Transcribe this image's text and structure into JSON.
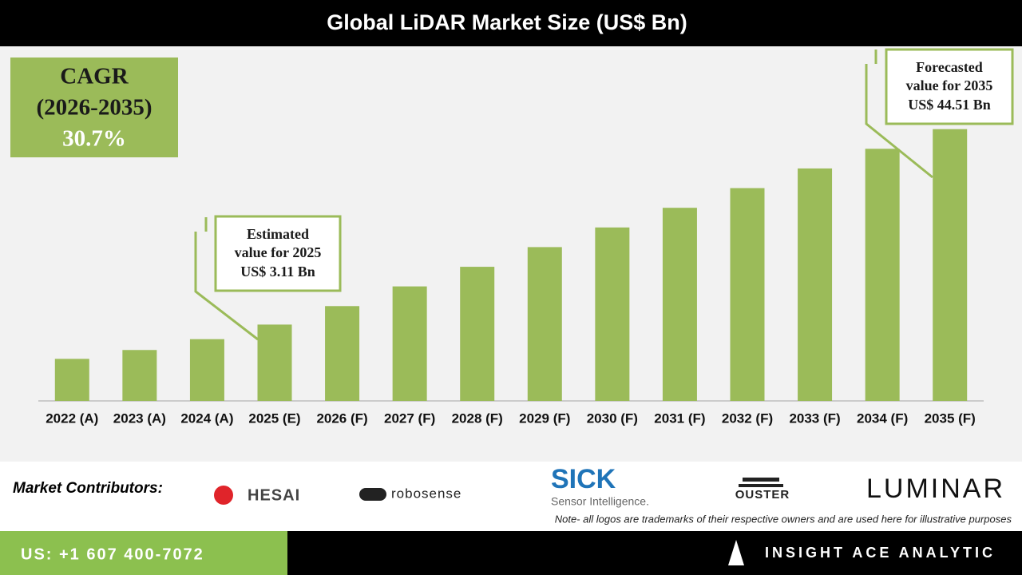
{
  "chart_data": {
    "type": "bar",
    "title": "Global LiDAR Market Size (US$ Bn)",
    "categories": [
      "2022 (A)",
      "2023 (A)",
      "2024 (A)",
      "2025 (E)",
      "2026 (F)",
      "2027 (F)",
      "2028 (F)",
      "2029 (F)",
      "2030 (F)",
      "2031 (F)",
      "2032 (F)",
      "2033 (F)",
      "2034 (F)",
      "2035 (F)"
    ],
    "values": [
      1.95,
      2.2,
      2.55,
      3.11,
      4.0,
      5.23,
      6.83,
      8.93,
      11.67,
      15.25,
      19.94,
      26.06,
      34.06,
      44.51
    ],
    "value_labels": [
      null,
      null,
      null,
      "US$ 3.11 Bn",
      null,
      null,
      null,
      null,
      null,
      null,
      null,
      null,
      null,
      "US$ 44.51 Bn"
    ],
    "annotations": [
      [
        "Estimated",
        "value for 2025"
      ],
      [
        "Forecasted",
        "value for 2035"
      ]
    ],
    "color": "#9bbb59",
    "log_scale": true,
    "ylim": [
      1.1,
      50
    ]
  },
  "cagr": {
    "label": "CAGR",
    "period": "(2026-2035)",
    "value": "30.7%"
  },
  "contributors": {
    "title": "Market Contributors:",
    "logos": [
      "HESAI",
      "robosense",
      "SICK",
      "Sensor Intelligence.",
      "OUSTER",
      "LUMINAR"
    ]
  },
  "note": "Note- all logos are trademarks of their respective owners and are used here for illustrative purposes",
  "footer": {
    "phone": "US: +1 607 400-7072",
    "company": "INSIGHT ACE ANALYTIC"
  }
}
